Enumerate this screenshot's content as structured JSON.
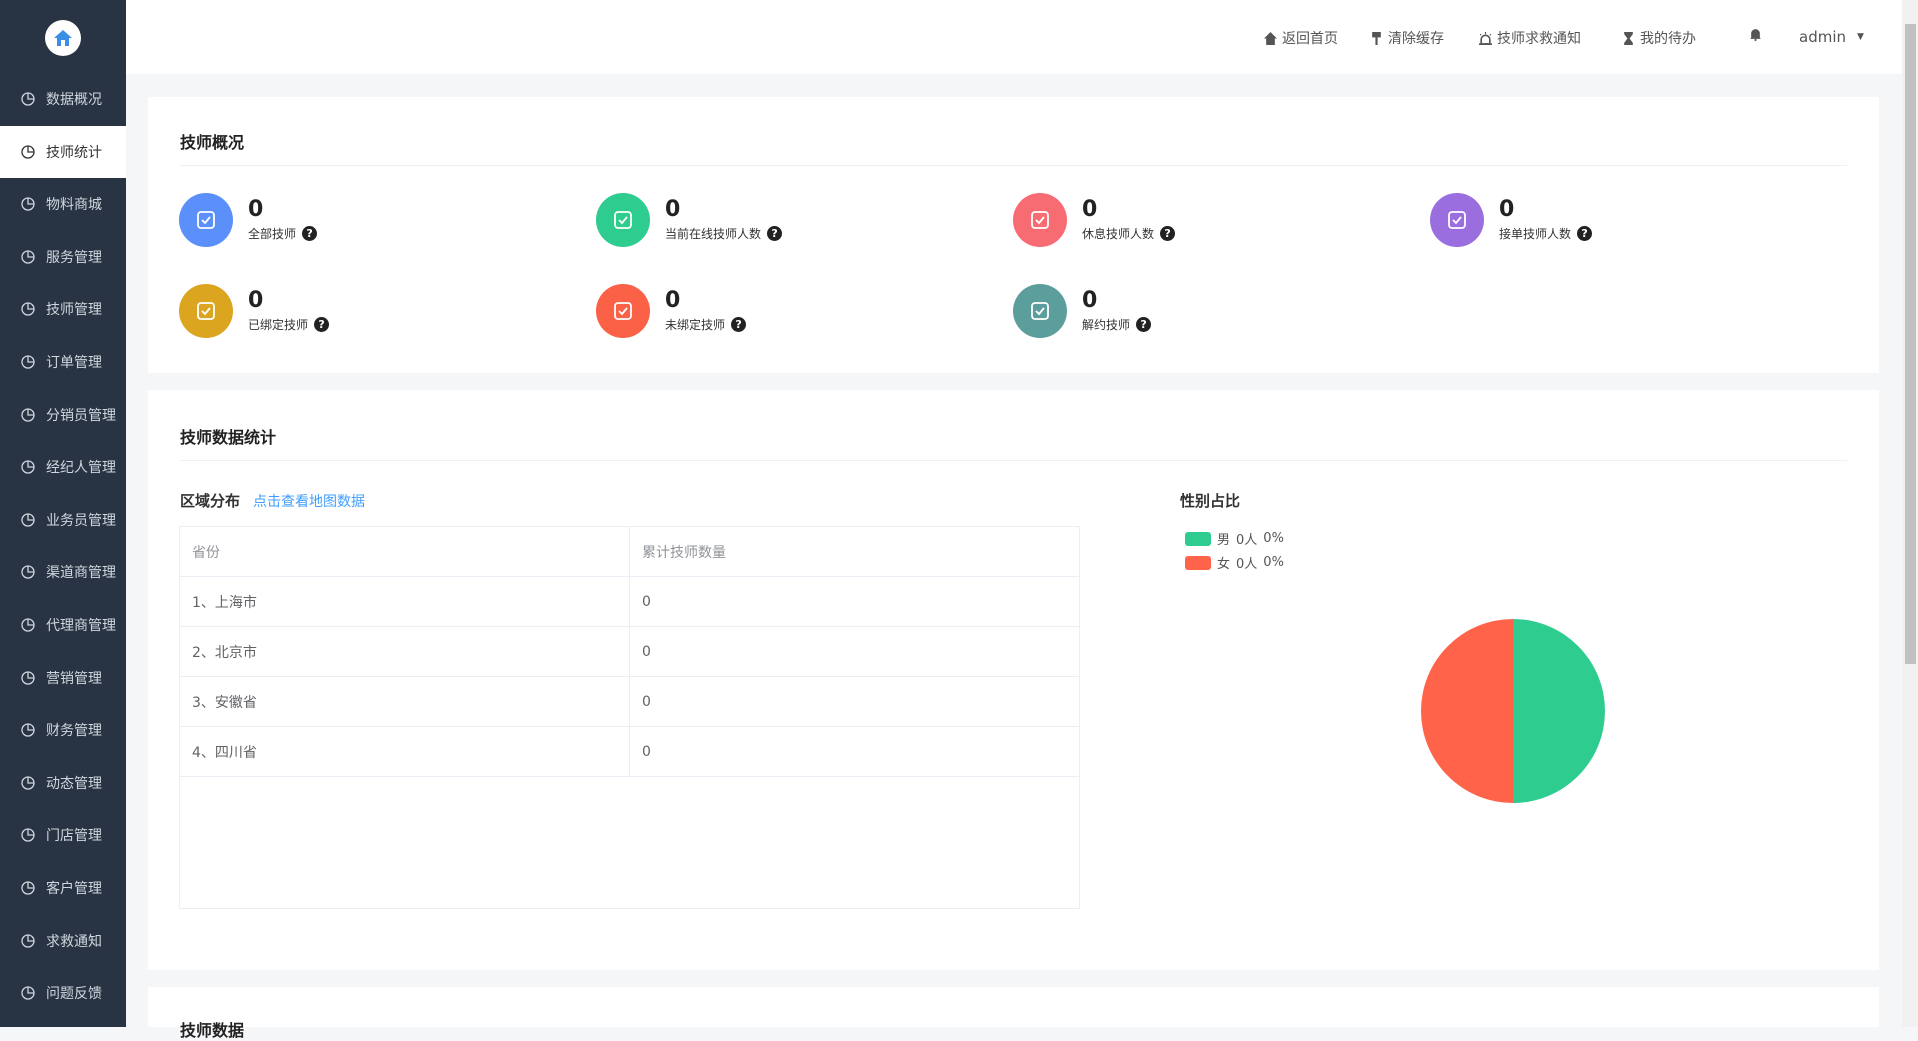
{
  "sidebar": {
    "items": [
      {
        "label": "数据概况",
        "icon": "pie-chart-icon"
      },
      {
        "label": "技师统计",
        "icon": "stats-icon",
        "active": true
      },
      {
        "label": "物料商城",
        "icon": "shop-bag-icon"
      },
      {
        "label": "服务管理",
        "icon": "service-icon"
      },
      {
        "label": "技师管理",
        "icon": "technician-icon"
      },
      {
        "label": "订单管理",
        "icon": "clipboard-icon"
      },
      {
        "label": "分销员管理",
        "icon": "hierarchy-icon"
      },
      {
        "label": "经纪人管理",
        "icon": "agent-icon"
      },
      {
        "label": "业务员管理",
        "icon": "users-icon"
      },
      {
        "label": "渠道商管理",
        "icon": "channel-icon"
      },
      {
        "label": "代理商管理",
        "icon": "proxy-icon"
      },
      {
        "label": "营销管理",
        "icon": "marketing-icon"
      },
      {
        "label": "财务管理",
        "icon": "money-bag-icon"
      },
      {
        "label": "动态管理",
        "icon": "compass-icon"
      },
      {
        "label": "门店管理",
        "icon": "store-icon"
      },
      {
        "label": "客户管理",
        "icon": "customers-icon"
      },
      {
        "label": "求救通知",
        "icon": "bell-icon"
      },
      {
        "label": "问题反馈",
        "icon": "feedback-icon"
      }
    ]
  },
  "header": {
    "home": "返回首页",
    "clear_cache": "清除缓存",
    "sos_notice": "技师求救通知",
    "todo": "我的待办",
    "user": "admin"
  },
  "overview": {
    "title": "技师概况",
    "stats": [
      {
        "value": "0",
        "label": "全部技师",
        "color": "#5b8ff9",
        "icon": "users-icon"
      },
      {
        "value": "0",
        "label": "当前在线技师人数",
        "color": "#2ecc8f",
        "icon": "monitor-check-icon"
      },
      {
        "value": "0",
        "label": "休息技师人数",
        "color": "#f76b73",
        "icon": "coffee-icon"
      },
      {
        "value": "0",
        "label": "接单技师人数",
        "color": "#9b6ee0",
        "icon": "order-check-icon"
      },
      {
        "value": "0",
        "label": "已绑定技师",
        "color": "#dba520",
        "icon": "bound-icon"
      },
      {
        "value": "0",
        "label": "未绑定技师",
        "color": "#fa6147",
        "icon": "person-icon"
      },
      {
        "value": "0",
        "label": "解约技师",
        "color": "#5c9e9c",
        "icon": "file-x-icon"
      }
    ]
  },
  "stats_section": {
    "title": "技师数据统计",
    "region_title": "区域分布",
    "map_link": "点击查看地图数据",
    "table": {
      "headers": [
        "省份",
        "累计技师数量"
      ],
      "rows": [
        [
          "1、上海市",
          "0"
        ],
        [
          "2、北京市",
          "0"
        ],
        [
          "3、安徽省",
          "0"
        ],
        [
          "4、四川省",
          "0"
        ]
      ]
    },
    "gender_title": "性别占比",
    "gender": [
      {
        "label": "男",
        "count": "0人",
        "percent": "0%",
        "color": "#2ecc8f"
      },
      {
        "label": "女",
        "count": "0人",
        "percent": "0%",
        "color": "#ff634a"
      }
    ]
  },
  "third_section": {
    "title": "技师数据"
  }
}
